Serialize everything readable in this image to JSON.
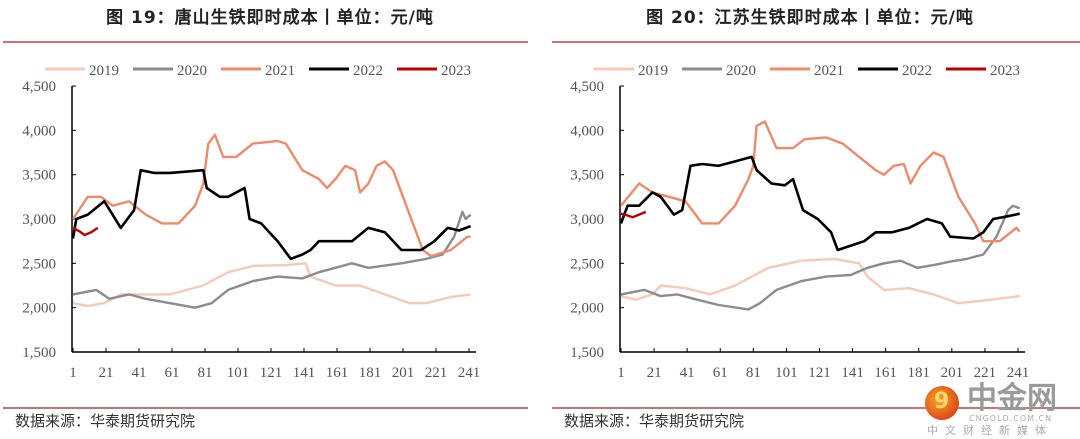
{
  "charts": [
    {
      "title": "图 19：唐山生铁即时成本丨单位：元/吨",
      "source": "数据来源：华泰期货研究院"
    },
    {
      "title": "图 20：江苏生铁即时成本丨单位：元/吨",
      "source": "数据来源：华泰期货研究院"
    }
  ],
  "watermark": {
    "logo_text": "中金网",
    "url": "CNGOLD.COM.CN",
    "subtitle": "中文财经新媒体"
  },
  "colors": {
    "2019": "#f8c9b6",
    "2020": "#8c8c8c",
    "2021": "#f08a68",
    "2022": "#000000",
    "2023": "#c00000",
    "rule": "#c0504d"
  },
  "chart_data": [
    {
      "type": "line",
      "title": "图 19：唐山生铁即时成本丨单位：元/吨",
      "xlabel": "",
      "ylabel": "元/吨",
      "ylim": [
        1500,
        4500
      ],
      "xlim": [
        1,
        245
      ],
      "yticks": [
        "1,500",
        "2,000",
        "2,500",
        "3,000",
        "3,500",
        "4,000",
        "4,500"
      ],
      "ytick_values": [
        1500,
        2000,
        2500,
        3000,
        3500,
        4000,
        4500
      ],
      "xticks": [
        "1",
        "21",
        "41",
        "61",
        "81",
        "101",
        "121",
        "141",
        "161",
        "181",
        "201",
        "221",
        "241"
      ],
      "legend": "top",
      "series": [
        {
          "name": "2019",
          "points": [
            [
              1,
              2050
            ],
            [
              10,
              2020
            ],
            [
              20,
              2050
            ],
            [
              30,
              2150
            ],
            [
              45,
              2150
            ],
            [
              60,
              2150
            ],
            [
              80,
              2250
            ],
            [
              95,
              2400
            ],
            [
              110,
              2470
            ],
            [
              130,
              2480
            ],
            [
              142,
              2500
            ],
            [
              145,
              2350
            ],
            [
              160,
              2250
            ],
            [
              175,
              2250
            ],
            [
              190,
              2150
            ],
            [
              205,
              2050
            ],
            [
              215,
              2050
            ],
            [
              230,
              2120
            ],
            [
              242,
              2150
            ]
          ]
        },
        {
          "name": "2020",
          "points": [
            [
              1,
              2150
            ],
            [
              15,
              2200
            ],
            [
              23,
              2100
            ],
            [
              35,
              2150
            ],
            [
              45,
              2100
            ],
            [
              60,
              2050
            ],
            [
              75,
              2000
            ],
            [
              85,
              2050
            ],
            [
              95,
              2200
            ],
            [
              110,
              2300
            ],
            [
              125,
              2350
            ],
            [
              140,
              2330
            ],
            [
              150,
              2400
            ],
            [
              160,
              2450
            ],
            [
              170,
              2500
            ],
            [
              180,
              2450
            ],
            [
              200,
              2500
            ],
            [
              215,
              2550
            ],
            [
              225,
              2600
            ],
            [
              232,
              2800
            ],
            [
              237,
              3080
            ],
            [
              239,
              3000
            ],
            [
              242,
              3050
            ]
          ]
        },
        {
          "name": "2021",
          "points": [
            [
              1,
              3000
            ],
            [
              10,
              3250
            ],
            [
              18,
              3250
            ],
            [
              25,
              3150
            ],
            [
              35,
              3200
            ],
            [
              45,
              3050
            ],
            [
              55,
              2950
            ],
            [
              65,
              2950
            ],
            [
              75,
              3150
            ],
            [
              80,
              3400
            ],
            [
              83,
              3850
            ],
            [
              87,
              3950
            ],
            [
              92,
              3700
            ],
            [
              100,
              3700
            ],
            [
              110,
              3850
            ],
            [
              125,
              3880
            ],
            [
              130,
              3850
            ],
            [
              140,
              3550
            ],
            [
              150,
              3450
            ],
            [
              155,
              3350
            ],
            [
              160,
              3450
            ],
            [
              166,
              3600
            ],
            [
              172,
              3550
            ],
            [
              175,
              3300
            ],
            [
              180,
              3400
            ],
            [
              185,
              3600
            ],
            [
              190,
              3650
            ],
            [
              195,
              3550
            ],
            [
              205,
              3050
            ],
            [
              213,
              2650
            ],
            [
              218,
              2580
            ],
            [
              230,
              2650
            ],
            [
              240,
              2800
            ],
            [
              242,
              2800
            ]
          ]
        },
        {
          "name": "2022",
          "points": [
            [
              1,
              2780
            ],
            [
              3,
              3000
            ],
            [
              10,
              3050
            ],
            [
              20,
              3200
            ],
            [
              30,
              2900
            ],
            [
              38,
              3100
            ],
            [
              42,
              3550
            ],
            [
              50,
              3520
            ],
            [
              60,
              3520
            ],
            [
              80,
              3550
            ],
            [
              82,
              3350
            ],
            [
              90,
              3250
            ],
            [
              95,
              3250
            ],
            [
              105,
              3350
            ],
            [
              108,
              3000
            ],
            [
              115,
              2950
            ],
            [
              125,
              2750
            ],
            [
              133,
              2550
            ],
            [
              140,
              2600
            ],
            [
              145,
              2650
            ],
            [
              150,
              2750
            ],
            [
              160,
              2750
            ],
            [
              170,
              2750
            ],
            [
              180,
              2900
            ],
            [
              190,
              2850
            ],
            [
              200,
              2650
            ],
            [
              212,
              2650
            ],
            [
              220,
              2750
            ],
            [
              228,
              2900
            ],
            [
              235,
              2870
            ],
            [
              242,
              2920
            ]
          ]
        },
        {
          "name": "2023",
          "points": [
            [
              1,
              2900
            ],
            [
              5,
              2860
            ],
            [
              8,
              2820
            ],
            [
              12,
              2850
            ],
            [
              16,
              2900
            ]
          ]
        }
      ]
    },
    {
      "type": "line",
      "title": "图 20：江苏生铁即时成本丨单位：元/吨",
      "xlabel": "",
      "ylabel": "元/吨",
      "ylim": [
        1500,
        4500
      ],
      "xlim": [
        1,
        245
      ],
      "yticks": [
        "1,500",
        "2,000",
        "2,500",
        "3,000",
        "3,500",
        "4,000",
        "4,500"
      ],
      "ytick_values": [
        1500,
        2000,
        2500,
        3000,
        3500,
        4000,
        4500
      ],
      "xticks": [
        "1",
        "21",
        "41",
        "61",
        "81",
        "101",
        "121",
        "141",
        "161",
        "181",
        "201",
        "221",
        "241"
      ],
      "legend": "top",
      "series": [
        {
          "name": "2019",
          "points": [
            [
              1,
              2130
            ],
            [
              10,
              2090
            ],
            [
              20,
              2150
            ],
            [
              25,
              2250
            ],
            [
              40,
              2220
            ],
            [
              55,
              2150
            ],
            [
              70,
              2250
            ],
            [
              90,
              2450
            ],
            [
              110,
              2530
            ],
            [
              130,
              2550
            ],
            [
              145,
              2500
            ],
            [
              150,
              2350
            ],
            [
              160,
              2200
            ],
            [
              175,
              2220
            ],
            [
              190,
              2150
            ],
            [
              205,
              2050
            ],
            [
              220,
              2080
            ],
            [
              242,
              2130
            ]
          ]
        },
        {
          "name": "2020",
          "points": [
            [
              1,
              2150
            ],
            [
              15,
              2200
            ],
            [
              25,
              2130
            ],
            [
              35,
              2150
            ],
            [
              45,
              2100
            ],
            [
              60,
              2030
            ],
            [
              78,
              1980
            ],
            [
              85,
              2050
            ],
            [
              95,
              2200
            ],
            [
              110,
              2300
            ],
            [
              125,
              2350
            ],
            [
              140,
              2370
            ],
            [
              150,
              2450
            ],
            [
              160,
              2500
            ],
            [
              170,
              2530
            ],
            [
              180,
              2450
            ],
            [
              190,
              2480
            ],
            [
              200,
              2520
            ],
            [
              210,
              2550
            ],
            [
              220,
              2600
            ],
            [
              228,
              2800
            ],
            [
              235,
              3100
            ],
            [
              238,
              3150
            ],
            [
              242,
              3120
            ]
          ]
        },
        {
          "name": "2021",
          "points": [
            [
              1,
              3150
            ],
            [
              12,
              3400
            ],
            [
              20,
              3300
            ],
            [
              30,
              3250
            ],
            [
              40,
              3200
            ],
            [
              50,
              2950
            ],
            [
              60,
              2950
            ],
            [
              70,
              3150
            ],
            [
              78,
              3450
            ],
            [
              81,
              3600
            ],
            [
              83,
              4050
            ],
            [
              88,
              4100
            ],
            [
              95,
              3800
            ],
            [
              105,
              3800
            ],
            [
              112,
              3900
            ],
            [
              125,
              3920
            ],
            [
              135,
              3850
            ],
            [
              145,
              3700
            ],
            [
              155,
              3550
            ],
            [
              160,
              3500
            ],
            [
              166,
              3600
            ],
            [
              172,
              3620
            ],
            [
              176,
              3400
            ],
            [
              182,
              3600
            ],
            [
              190,
              3750
            ],
            [
              196,
              3700
            ],
            [
              205,
              3250
            ],
            [
              215,
              2950
            ],
            [
              220,
              2750
            ],
            [
              230,
              2750
            ],
            [
              240,
              2900
            ],
            [
              242,
              2860
            ]
          ]
        },
        {
          "name": "2022",
          "points": [
            [
              1,
              2950
            ],
            [
              5,
              3150
            ],
            [
              12,
              3150
            ],
            [
              20,
              3300
            ],
            [
              25,
              3250
            ],
            [
              33,
              3050
            ],
            [
              38,
              3100
            ],
            [
              43,
              3600
            ],
            [
              50,
              3620
            ],
            [
              60,
              3600
            ],
            [
              70,
              3650
            ],
            [
              80,
              3700
            ],
            [
              83,
              3550
            ],
            [
              92,
              3400
            ],
            [
              100,
              3380
            ],
            [
              105,
              3450
            ],
            [
              111,
              3100
            ],
            [
              120,
              3000
            ],
            [
              128,
              2850
            ],
            [
              132,
              2650
            ],
            [
              140,
              2700
            ],
            [
              148,
              2750
            ],
            [
              155,
              2850
            ],
            [
              165,
              2850
            ],
            [
              175,
              2900
            ],
            [
              186,
              3000
            ],
            [
              195,
              2950
            ],
            [
              200,
              2800
            ],
            [
              214,
              2780
            ],
            [
              220,
              2850
            ],
            [
              226,
              3000
            ],
            [
              232,
              3020
            ],
            [
              242,
              3060
            ]
          ]
        },
        {
          "name": "2023",
          "points": [
            [
              1,
              3060
            ],
            [
              5,
              3040
            ],
            [
              8,
              3020
            ],
            [
              12,
              3050
            ],
            [
              16,
              3080
            ]
          ]
        }
      ]
    }
  ]
}
